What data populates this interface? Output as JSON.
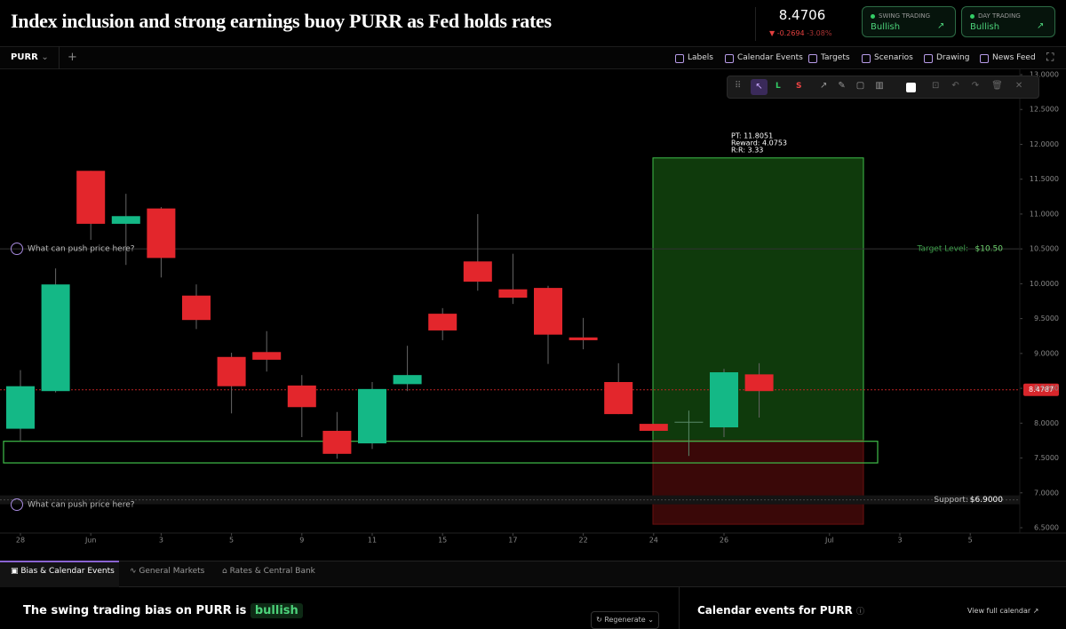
{
  "header": {
    "title": "Index inclusion and strong earnings buoy PURR as Fed holds rates",
    "price": "8.4706",
    "change": "-0.2694",
    "change_pct": "-3.08%",
    "cards": [
      {
        "label": "SWING TRADING",
        "value": "Bullish"
      },
      {
        "label": "DAY TRADING",
        "value": "Bullish"
      }
    ]
  },
  "toolbar": {
    "symbol": "PURR",
    "add": "+",
    "buttons": [
      "Labels",
      "Calendar Events",
      "Targets",
      "Scenarios",
      "Drawing",
      "News Feed"
    ],
    "draw_tools": [
      "L",
      "S"
    ]
  },
  "overlay": {
    "prompts": [
      "What can push price here?",
      "What can push price here?"
    ]
  },
  "chart_data": {
    "type": "candlestick",
    "categories": [
      "28",
      null,
      "Jun",
      null,
      "3",
      null,
      "5",
      null,
      "9",
      null,
      "11",
      null,
      "15",
      null,
      "17",
      null,
      "22",
      null,
      "24",
      null,
      "26",
      null,
      null,
      "Jul",
      null,
      "3",
      null,
      "5"
    ],
    "open": [
      7.92,
      8.46,
      11.62,
      10.86,
      11.08,
      9.83,
      8.95,
      9.02,
      8.54,
      7.89,
      7.71,
      8.56,
      9.57,
      10.32,
      9.92,
      9.94,
      9.23,
      8.59,
      7.99,
      8.02,
      7.94,
      8.7,
      null,
      null,
      null,
      null,
      null,
      null
    ],
    "high": [
      8.76,
      10.22,
      11.62,
      11.29,
      11.1,
      9.99,
      9.01,
      9.32,
      8.69,
      8.16,
      8.59,
      9.11,
      9.65,
      11.0,
      10.43,
      9.97,
      9.51,
      8.86,
      7.99,
      8.18,
      8.78,
      8.86,
      null,
      null,
      null,
      null,
      null,
      null
    ],
    "low": [
      7.74,
      8.44,
      10.63,
      10.27,
      10.09,
      9.35,
      8.14,
      8.74,
      7.8,
      7.49,
      7.63,
      8.46,
      9.19,
      9.9,
      9.71,
      8.85,
      9.06,
      8.13,
      7.89,
      7.53,
      7.8,
      8.08,
      null,
      null,
      null,
      null,
      null,
      null
    ],
    "close": [
      8.53,
      9.99,
      10.86,
      10.97,
      10.37,
      9.48,
      8.53,
      8.91,
      8.23,
      7.56,
      8.49,
      8.69,
      9.33,
      10.03,
      9.8,
      9.27,
      9.19,
      8.13,
      7.89,
      8.02,
      8.73,
      8.46,
      null,
      null,
      null,
      null,
      null,
      null
    ],
    "up_color": "#14b886",
    "down_color": "#e3262c",
    "ylim": [
      6.5,
      13
    ],
    "yticks": [
      {
        "value": 6.5,
        "label": "6.5000"
      },
      {
        "value": 7,
        "label": "7.0000"
      },
      {
        "value": 7.5,
        "label": "7.5000"
      },
      {
        "value": 8,
        "label": "8.0000"
      },
      {
        "value": 8.5,
        "label": "8.5000"
      },
      {
        "value": 9,
        "label": "9.0000"
      },
      {
        "value": 9.5,
        "label": "9.5000"
      },
      {
        "value": 10,
        "label": "10.0000"
      },
      {
        "value": 10.5,
        "label": "10.5000"
      },
      {
        "value": 11,
        "label": "11.0000"
      },
      {
        "value": 11.5,
        "label": "11.5000"
      },
      {
        "value": 12,
        "label": "12.0000"
      },
      {
        "value": 12.5,
        "label": "12.5000"
      },
      {
        "value": 13,
        "label": "13.0000"
      }
    ],
    "current_price": 8.4787,
    "levels": [
      {
        "name": "Target Level:",
        "value": 10.5,
        "value_label": "$10.50",
        "color": "#3fa34d"
      },
      {
        "name": "Support:",
        "value": 6.9,
        "value_label": "$6.9000",
        "color": "#bbbbbb"
      }
    ],
    "zones": [
      {
        "from": 7.75,
        "to": 11.8051,
        "color": "#0f3a0c"
      },
      {
        "from": 6.55,
        "to": 7.75,
        "color": "#3a0808"
      },
      {
        "from": 7.43,
        "to": 7.74,
        "color": "#3fbf4a"
      }
    ],
    "annotations": [
      "PT: 11.8051",
      "Reward: 4.0753",
      "R:R: 3.33"
    ]
  },
  "bottom": {
    "tabs": [
      "Bias & Calendar Events",
      "General Markets",
      "Rates & Central Bank"
    ],
    "bias_text": "The swing trading bias on PURR is",
    "bias_value": "bullish",
    "regenerate": "Regenerate",
    "calendar_title": "Calendar events for PURR",
    "calendar_link": "View full calendar"
  }
}
